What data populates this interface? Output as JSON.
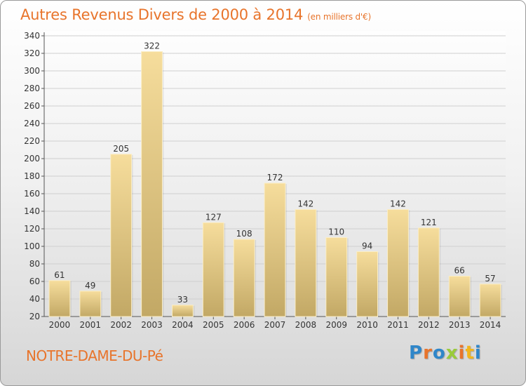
{
  "header": {
    "title": "Autres Revenus Divers de 2000 à 2014",
    "unit_note": "(en milliers d'€)"
  },
  "footer": {
    "town": "NOTRE-DAME-DU-Pé",
    "logo_letters": [
      "P",
      "r",
      "o",
      "x",
      "i",
      "t",
      "i"
    ]
  },
  "colors": {
    "accent": "#e8742b",
    "bar_top": "#f6dd9c",
    "bar_bottom": "#c2a865"
  },
  "chart_data": {
    "type": "bar",
    "categories": [
      "2000",
      "2001",
      "2002",
      "2003",
      "2004",
      "2005",
      "2006",
      "2007",
      "2008",
      "2009",
      "2010",
      "2011",
      "2012",
      "2013",
      "2014"
    ],
    "values": [
      61,
      49,
      205,
      322,
      33,
      127,
      108,
      172,
      142,
      110,
      94,
      142,
      121,
      66,
      57
    ],
    "title": "Autres Revenus Divers de 2000 à 2014",
    "xlabel": "",
    "ylabel": "",
    "ylim": [
      20,
      340
    ],
    "yticks": [
      20,
      40,
      60,
      80,
      100,
      120,
      140,
      160,
      180,
      200,
      220,
      240,
      260,
      280,
      300,
      320,
      340
    ],
    "grid": true
  }
}
